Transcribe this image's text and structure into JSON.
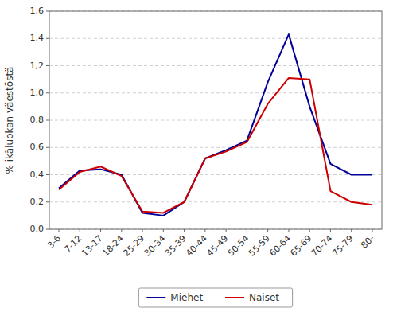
{
  "chart_data": {
    "type": "line",
    "ylabel": "% ikäluokan väestöstä",
    "categories": [
      "3-6",
      "7-12",
      "13-17",
      "18-24",
      "25-29",
      "30-34",
      "35-39",
      "40-44",
      "45-49",
      "50-54",
      "55-59",
      "60-64",
      "65-69",
      "70-74",
      "75-79",
      "80-"
    ],
    "series": [
      {
        "name": "Miehet",
        "color": "#000099",
        "values": [
          0.3,
          0.43,
          0.44,
          0.4,
          0.12,
          0.1,
          0.2,
          0.52,
          0.58,
          0.65,
          1.08,
          1.43,
          0.9,
          0.48,
          0.4,
          0.4
        ]
      },
      {
        "name": "Naiset",
        "color": "#CC0000",
        "values": [
          0.29,
          0.42,
          0.46,
          0.39,
          0.13,
          0.12,
          0.2,
          0.52,
          0.57,
          0.64,
          0.92,
          1.11,
          1.1,
          0.28,
          0.2,
          0.18
        ]
      }
    ],
    "ylim": [
      0.0,
      1.6
    ],
    "yticks": [
      {
        "value": 0.0,
        "label": "0,0"
      },
      {
        "value": 0.2,
        "label": "0,2"
      },
      {
        "value": 0.4,
        "label": "0,4"
      },
      {
        "value": 0.6,
        "label": "0,6"
      },
      {
        "value": 0.8,
        "label": "0,8"
      },
      {
        "value": 1.0,
        "label": "1,0"
      },
      {
        "value": 1.2,
        "label": "1,2"
      },
      {
        "value": 1.4,
        "label": "1,4"
      },
      {
        "value": 1.6,
        "label": "1,6"
      }
    ],
    "grid": true,
    "legend": "bottom"
  }
}
